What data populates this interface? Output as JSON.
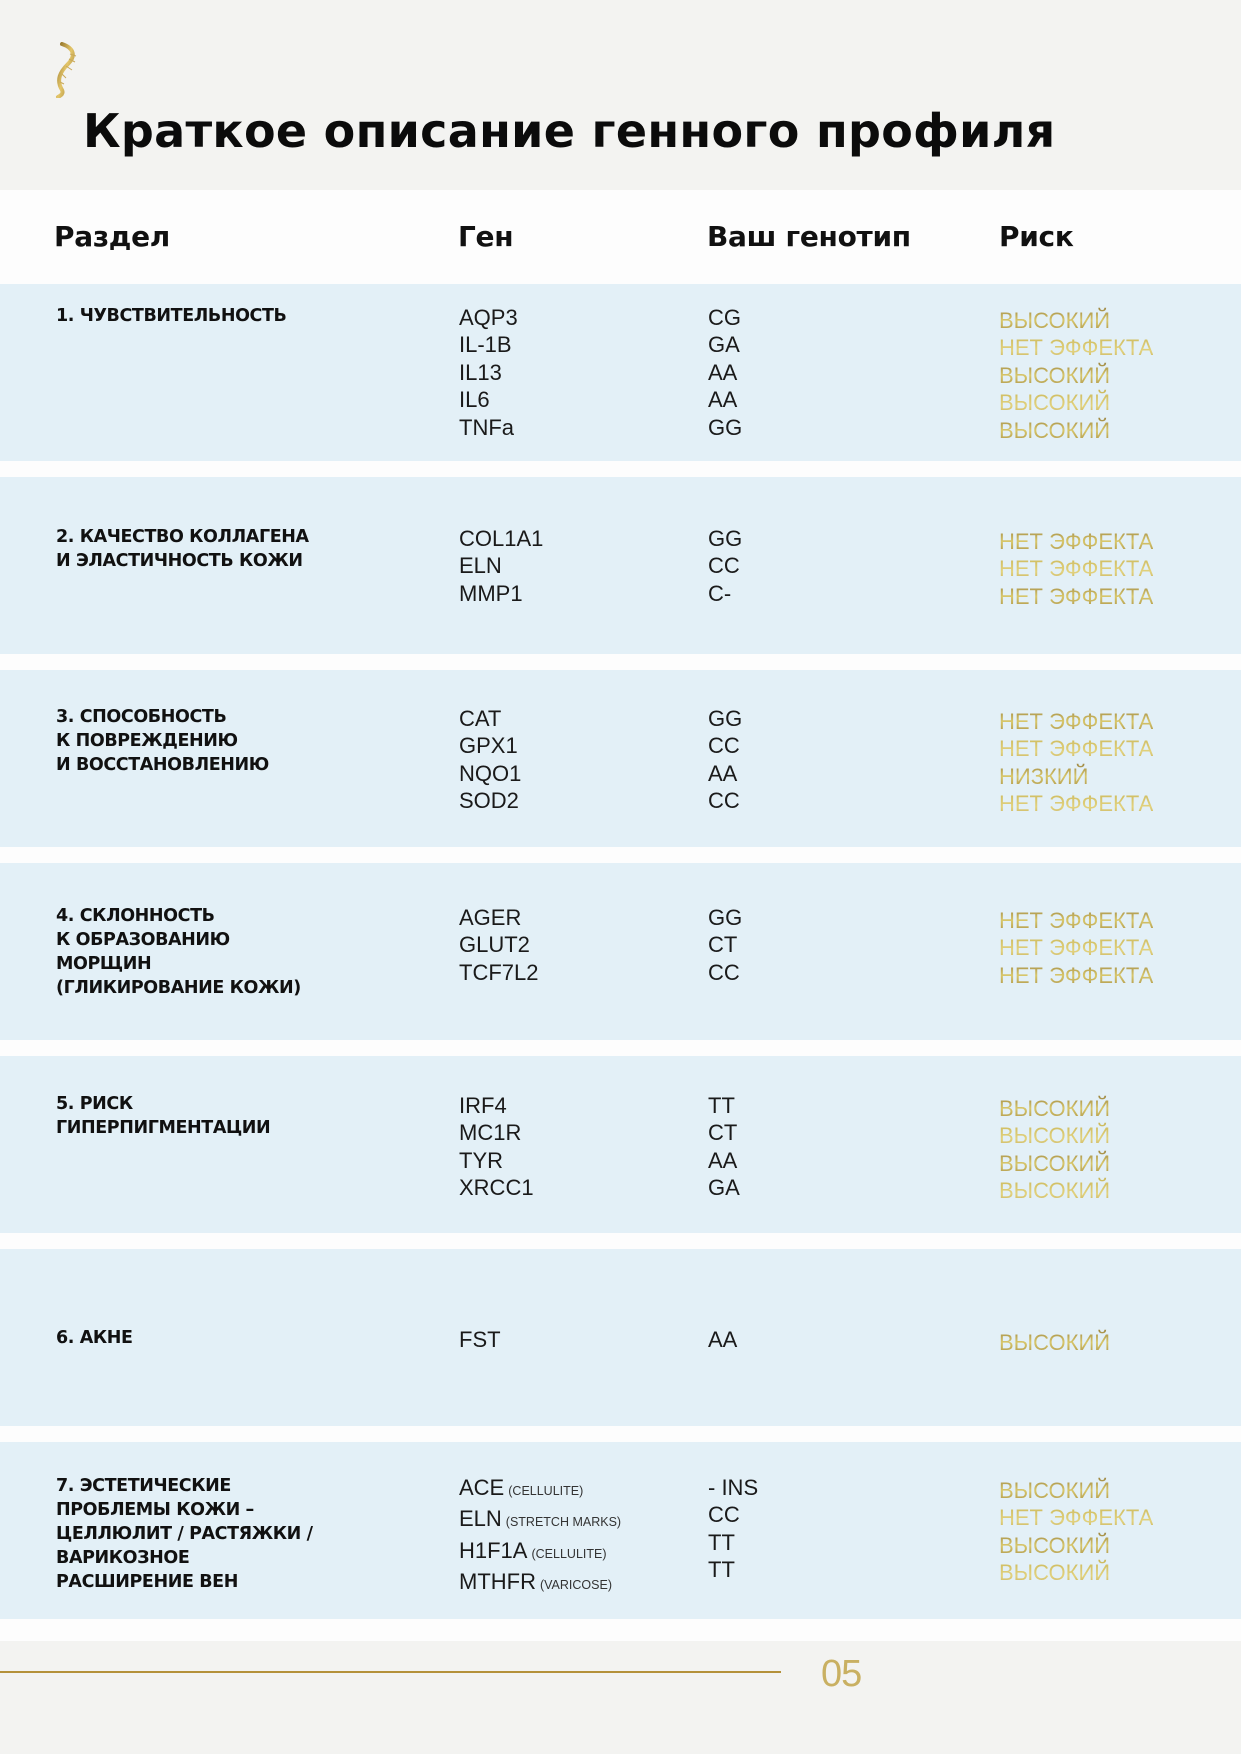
{
  "title": "Краткое описание генного профиля",
  "colors": {
    "accent_gold": "#b4913a",
    "row_bg": "#e3f0f7",
    "page_bg": "#f3f3f1"
  },
  "header": {
    "section": "Раздел",
    "gene": "Ген",
    "genotype": "Ваш генотип",
    "risk": "Риск"
  },
  "rows": [
    {
      "section": [
        "1. ЧУВСТВИТЕЛЬНОСТЬ"
      ],
      "genes": [
        {
          "name": "AQP3"
        },
        {
          "name": "IL-1B"
        },
        {
          "name": "IL13"
        },
        {
          "name": "IL6"
        },
        {
          "name": "TNFa"
        }
      ],
      "genotypes": [
        "CG",
        "GA",
        "AA",
        "AA",
        "GG"
      ],
      "risks": [
        "ВЫСОКИЙ",
        "НЕТ ЭФФЕКТА",
        "ВЫСОКИЙ",
        "ВЫСОКИЙ",
        "ВЫСОКИЙ"
      ]
    },
    {
      "section": [
        "2. КАЧЕСТВО КОЛЛАГЕНА",
        "И ЭЛАСТИЧНОСТЬ КОЖИ"
      ],
      "genes": [
        {
          "name": "COL1A1"
        },
        {
          "name": "ELN"
        },
        {
          "name": "MMP1"
        }
      ],
      "genotypes": [
        "GG",
        "CC",
        "C-"
      ],
      "risks": [
        "НЕТ ЭФФЕКТА",
        "НЕТ ЭФФЕКТА",
        "НЕТ ЭФФЕКТА"
      ]
    },
    {
      "section": [
        "3. СПОСОБНОСТЬ",
        "К ПОВРЕЖДЕНИЮ",
        "И ВОССТАНОВЛЕНИЮ"
      ],
      "genes": [
        {
          "name": "CAT"
        },
        {
          "name": "GPX1"
        },
        {
          "name": "NQO1"
        },
        {
          "name": "SOD2"
        }
      ],
      "genotypes": [
        "GG",
        "CC",
        "AA",
        "CC"
      ],
      "risks": [
        "НЕТ ЭФФЕКТА",
        "НЕТ ЭФФЕКТА",
        "НИЗКИЙ",
        "НЕТ ЭФФЕКТА"
      ]
    },
    {
      "section": [
        "4. СКЛОННОСТЬ",
        "К ОБРАЗОВАНИЮ",
        "МОРЩИН",
        "(ГЛИКИРОВАНИЕ КОЖИ)"
      ],
      "genes": [
        {
          "name": "AGER"
        },
        {
          "name": "GLUT2"
        },
        {
          "name": "TCF7L2"
        }
      ],
      "genotypes": [
        "GG",
        "CT",
        "CC"
      ],
      "risks": [
        "НЕТ ЭФФЕКТА",
        "НЕТ ЭФФЕКТА",
        "НЕТ ЭФФЕКТА"
      ]
    },
    {
      "section": [
        "5. РИСК",
        "ГИПЕРПИГМЕНТАЦИИ"
      ],
      "genes": [
        {
          "name": "IRF4"
        },
        {
          "name": "MC1R"
        },
        {
          "name": "TYR"
        },
        {
          "name": "XRCC1"
        }
      ],
      "genotypes": [
        "TT",
        "CT",
        "AA",
        "GA"
      ],
      "risks": [
        "ВЫСОКИЙ",
        "ВЫСОКИЙ",
        "ВЫСОКИЙ",
        "ВЫСОКИЙ"
      ]
    },
    {
      "section": [
        "6. АКНЕ"
      ],
      "genes": [
        {
          "name": "FST"
        }
      ],
      "genotypes": [
        "AA"
      ],
      "risks": [
        "ВЫСОКИЙ"
      ]
    },
    {
      "section": [
        "7. ЭСТЕТИЧЕСКИЕ",
        "ПРОБЛЕМЫ КОЖИ –",
        "ЦЕЛЛЮЛИТ / РАСТЯЖКИ /",
        "ВАРИКОЗНОЕ",
        "РАСШИРЕНИЕ ВЕН"
      ],
      "genes": [
        {
          "name": "ACE",
          "note": "(CELLULITE)"
        },
        {
          "name": "ELN",
          "note": "(STRETCH MARKS)"
        },
        {
          "name": "H1F1A",
          "note": "(CELLULITE)"
        },
        {
          "name": "MTHFR",
          "note": "(VARICOSE)"
        }
      ],
      "genotypes": [
        "- INS",
        "CC",
        "TT",
        "TT"
      ],
      "risks": [
        "ВЫСОКИЙ",
        "НЕТ ЭФФЕКТА",
        "ВЫСОКИЙ",
        "ВЫСОКИЙ"
      ]
    }
  ],
  "footer": {
    "page_number": "05"
  }
}
